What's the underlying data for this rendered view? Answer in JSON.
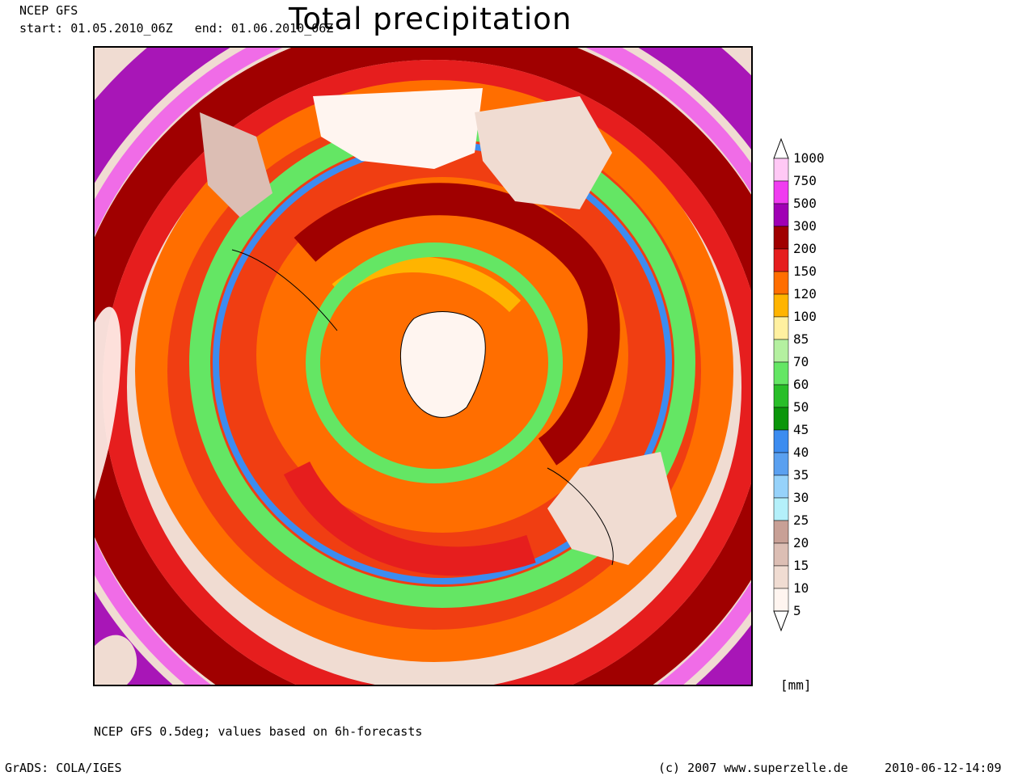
{
  "header": {
    "model": "NCEP GFS",
    "period": "start: 01.05.2010_06Z   end: 01.06.2010_06Z",
    "title": "Total precipitation"
  },
  "legend": {
    "units": "[mm]",
    "levels": [
      {
        "value": "1000",
        "color": "#ffffff"
      },
      {
        "value": "750",
        "color": "#ffc8f5"
      },
      {
        "value": "500",
        "color": "#f03cf0"
      },
      {
        "value": "300",
        "color": "#a000b4"
      },
      {
        "value": "200",
        "color": "#a00000"
      },
      {
        "value": "150",
        "color": "#e61e1e"
      },
      {
        "value": "120",
        "color": "#ff6e00"
      },
      {
        "value": "100",
        "color": "#ffb400"
      },
      {
        "value": "85",
        "color": "#fff0a0"
      },
      {
        "value": "70",
        "color": "#b4f0a0"
      },
      {
        "value": "60",
        "color": "#64e664"
      },
      {
        "value": "50",
        "color": "#28be28"
      },
      {
        "value": "45",
        "color": "#0a960a"
      },
      {
        "value": "40",
        "color": "#3c8cf0"
      },
      {
        "value": "35",
        "color": "#5aa0f0"
      },
      {
        "value": "30",
        "color": "#96d2fa"
      },
      {
        "value": "25",
        "color": "#b4f0fa"
      },
      {
        "value": "20",
        "color": "#c8a096"
      },
      {
        "value": "15",
        "color": "#dcbeb4"
      },
      {
        "value": "10",
        "color": "#f0dcd2"
      },
      {
        "value": "5",
        "color": "#fff5f0"
      }
    ]
  },
  "footer": {
    "source": "NCEP GFS 0.5deg; values based on 6h-forecasts",
    "software": "GrADS: COLA/IGES",
    "copyright": "(c) 2007 www.superzelle.de",
    "timestamp": "2010-06-12-14:09"
  }
}
